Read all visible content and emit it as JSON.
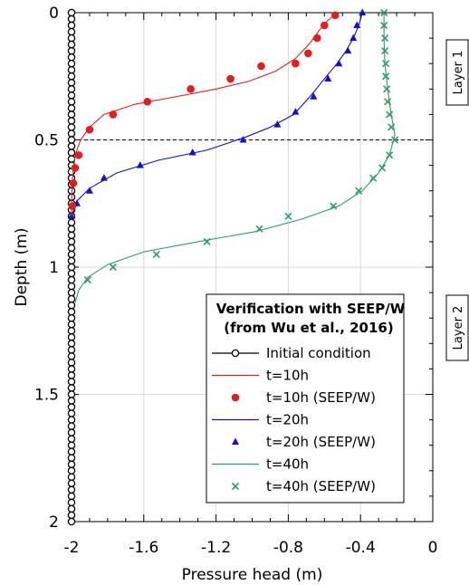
{
  "chart_data": {
    "type": "line",
    "xlabel": "Pressure head (m)",
    "ylabel": "Depth (m)",
    "xlim": [
      -2,
      0
    ],
    "ylim": [
      0,
      2
    ],
    "y_inverted": true,
    "x_ticks": [
      -2,
      -1.6,
      -1.2,
      -0.8,
      -0.4,
      0
    ],
    "x_tick_labels": [
      "-2",
      "-1.6",
      "-1.2",
      "-0.8",
      "-0.4",
      "0"
    ],
    "y_ticks": [
      0,
      0.5,
      1,
      1.5,
      2
    ],
    "y_tick_labels": [
      "0",
      "0.5",
      "1",
      "1.5",
      "2"
    ],
    "grid": true,
    "reference_line": {
      "y": 0.5,
      "style": "dashed"
    },
    "legend": {
      "title_lines": [
        "Verification with SEEP/W",
        "(from Wu et al., 2016)"
      ],
      "placement": "lower-right"
    },
    "layer_labels": [
      "Layer 1",
      "Layer 2"
    ],
    "colors": {
      "initial": "#000000",
      "t10": "#e02020",
      "t20": "#1010d0",
      "t40": "#2e9b6a"
    },
    "series": [
      {
        "name": "Initial condition",
        "kind": "line-circle",
        "color": "#000000",
        "points": [
          [
            -2,
            0
          ],
          [
            -2,
            0.025
          ],
          [
            -2,
            0.05
          ],
          [
            -2,
            0.075
          ],
          [
            -2,
            0.1
          ],
          [
            -2,
            0.125
          ],
          [
            -2,
            0.15
          ],
          [
            -2,
            0.175
          ],
          [
            -2,
            0.2
          ],
          [
            -2,
            0.225
          ],
          [
            -2,
            0.25
          ],
          [
            -2,
            0.275
          ],
          [
            -2,
            0.3
          ],
          [
            -2,
            0.325
          ],
          [
            -2,
            0.35
          ],
          [
            -2,
            0.375
          ],
          [
            -2,
            0.4
          ],
          [
            -2,
            0.425
          ],
          [
            -2,
            0.45
          ],
          [
            -2,
            0.475
          ],
          [
            -2,
            0.5
          ],
          [
            -2,
            0.525
          ],
          [
            -2,
            0.55
          ],
          [
            -2,
            0.575
          ],
          [
            -2,
            0.6
          ],
          [
            -2,
            0.625
          ],
          [
            -2,
            0.65
          ],
          [
            -2,
            0.675
          ],
          [
            -2,
            0.7
          ],
          [
            -2,
            0.725
          ],
          [
            -2,
            0.75
          ],
          [
            -2,
            0.775
          ],
          [
            -2,
            0.8
          ],
          [
            -2,
            0.825
          ],
          [
            -2,
            0.85
          ],
          [
            -2,
            0.875
          ],
          [
            -2,
            0.9
          ],
          [
            -2,
            0.925
          ],
          [
            -2,
            0.95
          ],
          [
            -2,
            0.975
          ],
          [
            -2,
            1
          ],
          [
            -2,
            1.025
          ],
          [
            -2,
            1.05
          ],
          [
            -2,
            1.075
          ],
          [
            -2,
            1.1
          ],
          [
            -2,
            1.125
          ],
          [
            -2,
            1.15
          ],
          [
            -2,
            1.175
          ],
          [
            -2,
            1.2
          ],
          [
            -2,
            1.225
          ],
          [
            -2,
            1.25
          ],
          [
            -2,
            1.275
          ],
          [
            -2,
            1.3
          ],
          [
            -2,
            1.325
          ],
          [
            -2,
            1.35
          ],
          [
            -2,
            1.375
          ],
          [
            -2,
            1.4
          ],
          [
            -2,
            1.425
          ],
          [
            -2,
            1.45
          ],
          [
            -2,
            1.475
          ],
          [
            -2,
            1.5
          ],
          [
            -2,
            1.525
          ],
          [
            -2,
            1.55
          ],
          [
            -2,
            1.575
          ],
          [
            -2,
            1.6
          ],
          [
            -2,
            1.625
          ],
          [
            -2,
            1.65
          ],
          [
            -2,
            1.675
          ],
          [
            -2,
            1.7
          ],
          [
            -2,
            1.725
          ],
          [
            -2,
            1.75
          ],
          [
            -2,
            1.775
          ],
          [
            -2,
            1.8
          ],
          [
            -2,
            1.825
          ],
          [
            -2,
            1.85
          ],
          [
            -2,
            1.875
          ],
          [
            -2,
            1.9
          ],
          [
            -2,
            1.925
          ],
          [
            -2,
            1.95
          ],
          [
            -2,
            1.975
          ],
          [
            -2,
            2
          ]
        ]
      },
      {
        "name": "t=10h",
        "kind": "line",
        "color": "#e02020",
        "points": [
          [
            -0.53,
            0
          ],
          [
            -0.58,
            0.03
          ],
          [
            -0.63,
            0.07
          ],
          [
            -0.68,
            0.12
          ],
          [
            -0.76,
            0.18
          ],
          [
            -0.87,
            0.23
          ],
          [
            -1.02,
            0.27
          ],
          [
            -1.2,
            0.3
          ],
          [
            -1.42,
            0.33
          ],
          [
            -1.65,
            0.36
          ],
          [
            -1.82,
            0.4
          ],
          [
            -1.9,
            0.45
          ],
          [
            -1.95,
            0.5
          ],
          [
            -1.98,
            0.56
          ],
          [
            -1.995,
            0.65
          ],
          [
            -2,
            0.75
          ],
          [
            -2,
            0.8
          ]
        ]
      },
      {
        "name": "t=10h (SEEP/W)",
        "kind": "markers-circle",
        "color": "#e02020",
        "points": [
          [
            -0.54,
            0.01
          ],
          [
            -0.6,
            0.05
          ],
          [
            -0.64,
            0.1
          ],
          [
            -0.69,
            0.16
          ],
          [
            -0.76,
            0.2
          ],
          [
            -0.95,
            0.21
          ],
          [
            -1.12,
            0.26
          ],
          [
            -1.34,
            0.3
          ],
          [
            -1.58,
            0.35
          ],
          [
            -1.77,
            0.4
          ],
          [
            -1.9,
            0.46
          ],
          [
            -1.96,
            0.56
          ],
          [
            -1.98,
            0.61
          ],
          [
            -1.99,
            0.67
          ],
          [
            -1.995,
            0.76
          ]
        ]
      },
      {
        "name": "t=20h",
        "kind": "line",
        "color": "#1010d0",
        "points": [
          [
            -0.39,
            0
          ],
          [
            -0.41,
            0.05
          ],
          [
            -0.44,
            0.1
          ],
          [
            -0.48,
            0.15
          ],
          [
            -0.53,
            0.2
          ],
          [
            -0.6,
            0.26
          ],
          [
            -0.68,
            0.33
          ],
          [
            -0.77,
            0.4
          ],
          [
            -0.9,
            0.45
          ],
          [
            -1.04,
            0.49
          ],
          [
            -1.25,
            0.54
          ],
          [
            -1.52,
            0.58
          ],
          [
            -1.75,
            0.63
          ],
          [
            -1.9,
            0.69
          ],
          [
            -1.97,
            0.74
          ],
          [
            -2,
            0.8
          ]
        ]
      },
      {
        "name": "t=20h (SEEP/W)",
        "kind": "markers-triangle",
        "color": "#1010d0",
        "points": [
          [
            -0.39,
            0
          ],
          [
            -0.42,
            0.05
          ],
          [
            -0.44,
            0.1
          ],
          [
            -0.47,
            0.15
          ],
          [
            -0.52,
            0.2
          ],
          [
            -0.58,
            0.26
          ],
          [
            -0.66,
            0.33
          ],
          [
            -0.76,
            0.39
          ],
          [
            -0.86,
            0.44
          ],
          [
            -1.05,
            0.5
          ],
          [
            -1.33,
            0.55
          ],
          [
            -1.62,
            0.6
          ],
          [
            -1.82,
            0.65
          ],
          [
            -1.9,
            0.7
          ],
          [
            -1.97,
            0.75
          ],
          [
            -2,
            0.8
          ]
        ]
      },
      {
        "name": "t=40h",
        "kind": "line",
        "color": "#2e9b6a",
        "points": [
          [
            -0.27,
            0
          ],
          [
            -0.27,
            0.1
          ],
          [
            -0.265,
            0.2
          ],
          [
            -0.25,
            0.3
          ],
          [
            -0.23,
            0.4
          ],
          [
            -0.21,
            0.48
          ],
          [
            -0.24,
            0.56
          ],
          [
            -0.3,
            0.63
          ],
          [
            -0.39,
            0.7
          ],
          [
            -0.52,
            0.76
          ],
          [
            -0.72,
            0.81
          ],
          [
            -0.98,
            0.86
          ],
          [
            -1.3,
            0.9
          ],
          [
            -1.6,
            0.94
          ],
          [
            -1.8,
            0.99
          ],
          [
            -1.91,
            1.04
          ],
          [
            -1.96,
            1.09
          ],
          [
            -1.98,
            1.14
          ]
        ]
      },
      {
        "name": "t=40h (SEEP/W)",
        "kind": "markers-x",
        "color": "#2e9b6a",
        "points": [
          [
            -0.27,
            0
          ],
          [
            -0.27,
            0.05
          ],
          [
            -0.265,
            0.1
          ],
          [
            -0.265,
            0.15
          ],
          [
            -0.26,
            0.2
          ],
          [
            -0.26,
            0.25
          ],
          [
            -0.255,
            0.3
          ],
          [
            -0.25,
            0.35
          ],
          [
            -0.24,
            0.4
          ],
          [
            -0.23,
            0.45
          ],
          [
            -0.21,
            0.5
          ],
          [
            -0.24,
            0.56
          ],
          [
            -0.28,
            0.61
          ],
          [
            -0.33,
            0.65
          ],
          [
            -0.41,
            0.7
          ],
          [
            -0.55,
            0.76
          ],
          [
            -0.8,
            0.8
          ],
          [
            -0.96,
            0.85
          ],
          [
            -1.25,
            0.9
          ],
          [
            -1.53,
            0.95
          ],
          [
            -1.77,
            1.0
          ],
          [
            -1.91,
            1.05
          ]
        ]
      }
    ]
  }
}
